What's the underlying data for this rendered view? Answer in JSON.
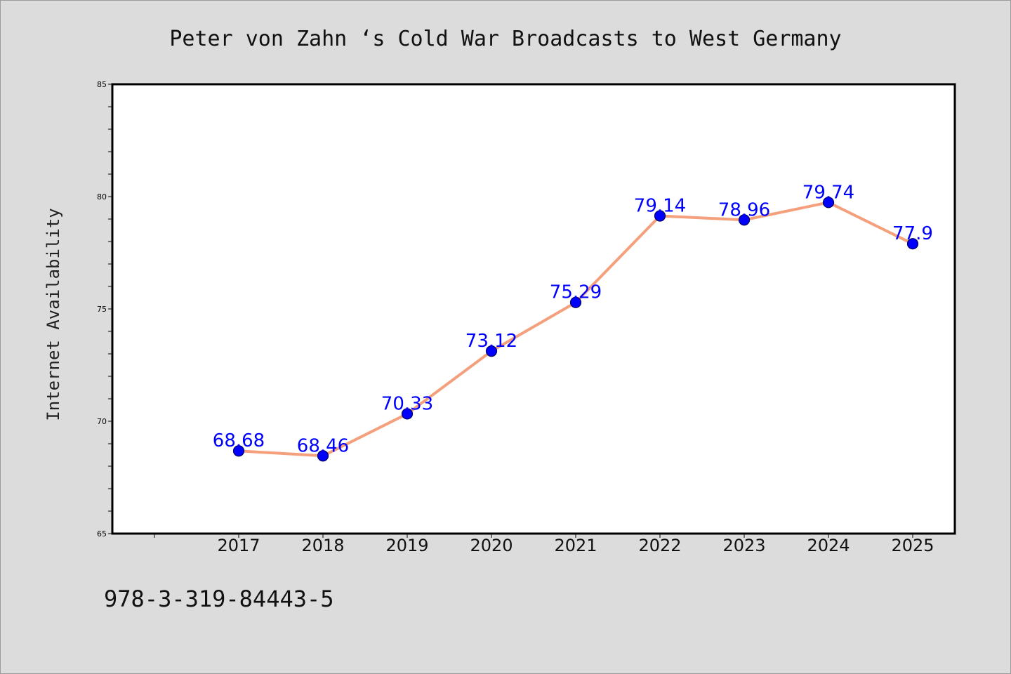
{
  "chart_data": {
    "type": "line",
    "title": "Peter von Zahn ‘s Cold War Broadcasts to West Germany",
    "xlabel": "",
    "ylabel": "Internet Availability",
    "categories": [
      "2017",
      "2018",
      "2019",
      "2020",
      "2021",
      "2022",
      "2023",
      "2024",
      "2025"
    ],
    "series": [
      {
        "values": [
          68.68,
          68.46,
          70.33,
          73.12,
          75.29,
          79.14,
          78.96,
          79.74,
          77.9
        ],
        "data_labels": [
          "68.68",
          "68.46",
          "70.33",
          "73.12",
          "75.29",
          "79.14",
          "78.96",
          "79.74",
          "77.9"
        ]
      }
    ],
    "ylim": [
      65,
      85
    ],
    "yticks": [
      "65",
      "70",
      "75",
      "80",
      "85"
    ],
    "grid": false,
    "colors": {
      "line": "#f4a07c",
      "marker": "#0000ff",
      "marker_edge": "#00005a",
      "data_label": "#0000ff",
      "plot_background": "#ffffff",
      "figure_background": "#dcdcdc"
    }
  },
  "footnote": "978-3-319-84443-5"
}
